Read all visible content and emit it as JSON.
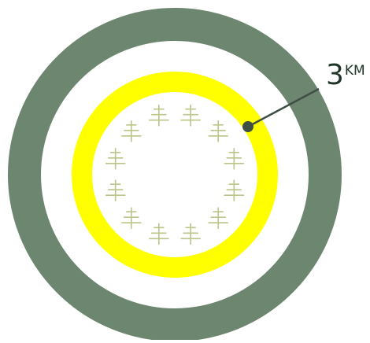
{
  "diagram": {
    "distance_label": {
      "value": "3",
      "unit": "KM"
    },
    "colors": {
      "outer_ring": "#6d8670",
      "inner_ring": "#ffff00",
      "background": "#ffffff",
      "tree": "#bcc48a",
      "marker": "#3f4f44",
      "leader_line": "#3f4f44"
    },
    "tree_count": 12,
    "icons": [
      "tree-icon",
      "marker-dot-icon"
    ]
  }
}
